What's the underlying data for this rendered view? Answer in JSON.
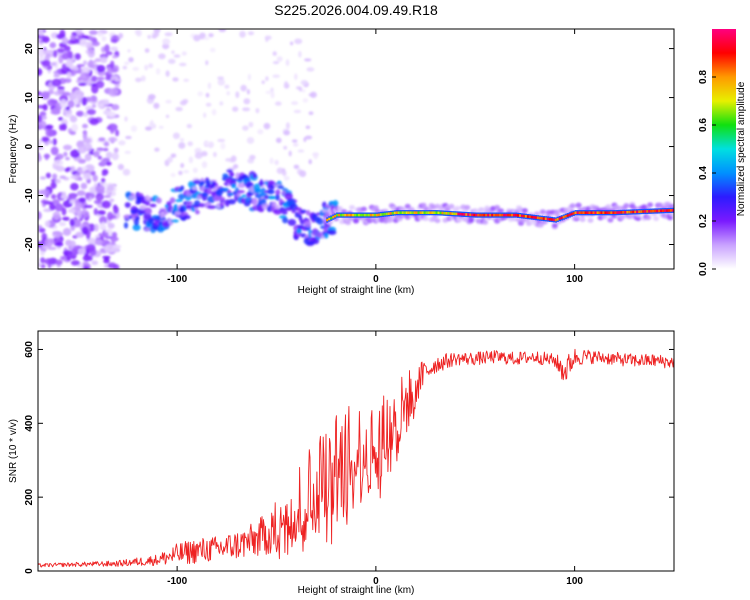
{
  "title": "S225.2026.004.09.49.R18",
  "colors": {
    "line": "#ee2222",
    "axis": "#000000",
    "colorbar": [
      "#ffffff",
      "#c9a2ff",
      "#7a1aff",
      "#2d1bff",
      "#0090ff",
      "#00e0e0",
      "#10e010",
      "#e8f000",
      "#ff9a00",
      "#ff0000",
      "#ff0080"
    ]
  },
  "chart_data": [
    {
      "type": "heatmap",
      "xlabel": "Height of straight line (km)",
      "ylabel": "Frequency (Hz)",
      "xlim": [
        -170,
        150
      ],
      "ylim": [
        -25,
        24
      ],
      "x_ticks": [
        -100,
        0,
        100
      ],
      "x_tick_labels": [
        "-100",
        "0",
        "100"
      ],
      "y_ticks": [
        -20,
        -10,
        0,
        10,
        20
      ],
      "y_tick_labels": [
        "-20",
        "-10",
        "0",
        "10",
        "20"
      ],
      "colorbar": {
        "label": "Normalized spectral amplitude",
        "range": [
          0,
          1
        ],
        "ticks": [
          0.0,
          0.2,
          0.4,
          0.6,
          0.8
        ],
        "tick_labels": [
          "0.0",
          "0.2",
          "0.4",
          "0.6",
          "0.8"
        ]
      },
      "features": [
        {
          "name": "noise-cloud",
          "x_range": [
            -170,
            -130
          ],
          "y_range": [
            -25,
            24
          ],
          "amplitude": 0.18
        },
        {
          "name": "sparse-noise",
          "x_range": [
            -130,
            -30
          ],
          "y_range": [
            -8,
            24
          ],
          "amplitude": 0.06
        },
        {
          "name": "tone",
          "points": [
            [
              -125,
              -13
            ],
            [
              -110,
              -14
            ],
            [
              -95,
              -11
            ],
            [
              -85,
              -10
            ],
            [
              -75,
              -8
            ],
            [
              -65,
              -9
            ],
            [
              -55,
              -10
            ],
            [
              -45,
              -12
            ],
            [
              -38,
              -17
            ],
            [
              -30,
              -16
            ],
            [
              -20,
              -14
            ],
            [
              -10,
              -14
            ],
            [
              0,
              -14
            ],
            [
              10,
              -13.5
            ],
            [
              30,
              -13.5
            ],
            [
              50,
              -14
            ],
            [
              70,
              -14
            ],
            [
              80,
              -14.5
            ],
            [
              90,
              -15
            ],
            [
              100,
              -13.5
            ],
            [
              120,
              -13.5
            ],
            [
              150,
              -13
            ]
          ],
          "amplitude": 0.85
        }
      ]
    },
    {
      "type": "line",
      "xlabel": "Height of straight line (km)",
      "ylabel": "SNR (10 * v/v)",
      "xlim": [
        -170,
        150
      ],
      "ylim": [
        0,
        650
      ],
      "x_ticks": [
        -100,
        0,
        100
      ],
      "x_tick_labels": [
        "-100",
        "0",
        "100"
      ],
      "y_ticks": [
        0,
        200,
        400,
        600
      ],
      "y_tick_labels": [
        "0",
        "200",
        "400",
        "600"
      ],
      "series": [
        {
          "name": "SNR",
          "x": [
            -170,
            -150,
            -130,
            -110,
            -100,
            -90,
            -80,
            -70,
            -60,
            -50,
            -40,
            -30,
            -20,
            -10,
            0,
            5,
            10,
            15,
            20,
            25,
            30,
            40,
            50,
            60,
            70,
            80,
            90,
            95,
            100,
            110,
            120,
            130,
            140,
            150
          ],
          "values": [
            15,
            18,
            20,
            30,
            45,
            55,
            60,
            70,
            85,
            120,
            180,
            230,
            270,
            310,
            340,
            370,
            400,
            450,
            500,
            540,
            560,
            575,
            575,
            580,
            575,
            580,
            570,
            540,
            580,
            580,
            575,
            570,
            570,
            565
          ],
          "noise": [
            5,
            6,
            8,
            15,
            30,
            35,
            35,
            40,
            50,
            70,
            110,
            140,
            160,
            150,
            120,
            120,
            120,
            90,
            60,
            35,
            25,
            18,
            18,
            18,
            18,
            18,
            18,
            40,
            25,
            18,
            18,
            18,
            18,
            18
          ]
        }
      ]
    }
  ]
}
